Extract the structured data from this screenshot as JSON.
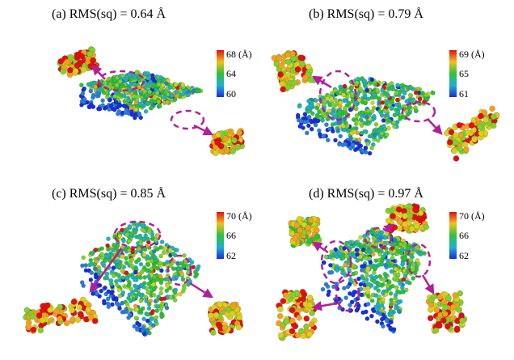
{
  "figure": {
    "panels": [
      {
        "id": "a",
        "label": "(a) RMS(sq) = 0.64 Å",
        "colorbar": {
          "ticks": [
            "68 (Å)",
            "64",
            "60"
          ],
          "min": 60,
          "max": 68
        }
      },
      {
        "id": "b",
        "label": "(b) RMS(sq) = 0.79 Å",
        "colorbar": {
          "ticks": [
            "69 (Å)",
            "65",
            "61"
          ],
          "min": 61,
          "max": 69
        }
      },
      {
        "id": "c",
        "label": "(c) RMS(sq) = 0.85 Å",
        "colorbar": {
          "ticks": [
            "70 (Å)",
            "66",
            "62"
          ],
          "min": 62,
          "max": 70
        }
      },
      {
        "id": "d",
        "label": "(d) RMS(sq) = 0.97 Å",
        "colorbar": {
          "ticks": [
            "70 (Å)",
            "66",
            "62"
          ],
          "min": 62,
          "max": 70
        }
      }
    ],
    "colors": {
      "low": "#1a2fd6",
      "mid": "#2fbf3a",
      "high": "#e01010",
      "arrow": "#b0209a"
    }
  }
}
